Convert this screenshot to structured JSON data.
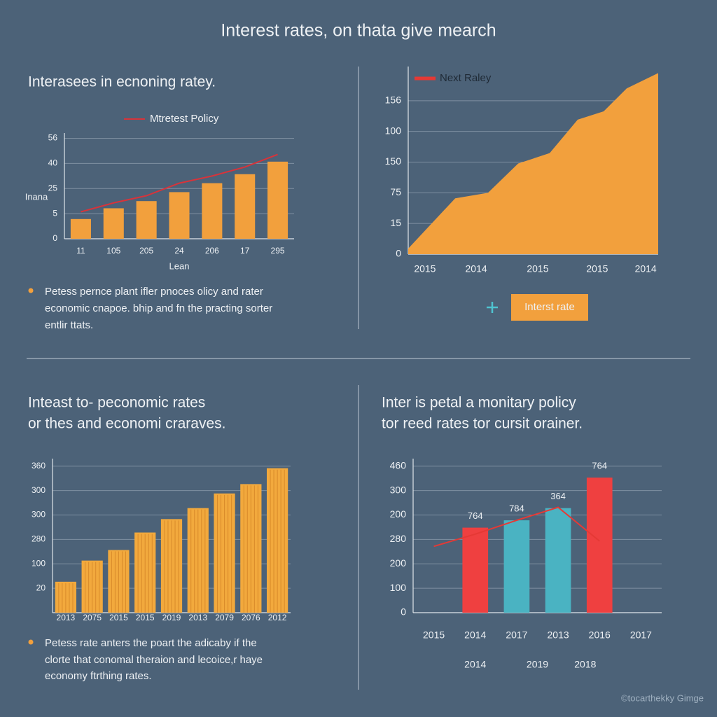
{
  "title": "Interest rates, on thata give mearch",
  "sections": [
    {
      "heading": [
        "Interasees in ecnoning ratey."
      ],
      "note": [
        "Petess pernce plant ifler pnoces olicy and rater",
        "economic cnapoe. bhip and fn the practing sorter",
        "entlir ttats."
      ]
    },
    {
      "heading": [
        "Inteast to- peconomic rates",
        "or thes and economi craraves."
      ],
      "note": [
        "Petess rate anters the poart the adicaby if the",
        "clorte that conomal theraion and lecoice,r haye",
        "economy ftrthing rates."
      ]
    },
    {
      "heading": [
        "Inter is petal a monitary policy",
        "tor reed rates tor cursit orainer."
      ]
    }
  ],
  "watermark": "©tocarthekky Gimge",
  "chart_data": [
    {
      "type": "bar",
      "categories": [
        "11",
        "105",
        "205",
        "24",
        "206",
        "17",
        "295"
      ],
      "series": [
        {
          "name": "Mtretest Policy",
          "type": "line",
          "color": "#d8333a",
          "values": [
            15,
            20,
            24,
            31,
            35,
            40,
            47
          ]
        },
        {
          "type": "bar",
          "color": "#f2a03d",
          "values": [
            11,
            17,
            21,
            26,
            31,
            36,
            43
          ]
        }
      ],
      "ylabel": "Inana",
      "xlabel": "Lean",
      "ylim": [
        0,
        57
      ],
      "yticks": [
        0,
        {
          "value": 14,
          "label": "5"
        },
        {
          "value": 28,
          "label": "25"
        },
        {
          "value": 42,
          "label": "40"
        },
        56
      ],
      "grid": true
    },
    {
      "type": "area",
      "x": [
        0,
        18.8,
        31.9,
        44,
        56.6,
        67.8,
        78.2,
        87.4,
        100
      ],
      "series": [
        {
          "name": "Interst rate",
          "color": "#f2a03d",
          "values": [
            5.5,
            54.6,
            60,
            88.6,
            98.8,
            131.5,
            139.6,
            162,
            177
          ]
        }
      ],
      "legend_line": {
        "name": "Next Raley",
        "color": "#e53935"
      },
      "xlim": [
        0,
        100
      ],
      "xticks": [
        {
          "value": 6.7,
          "label": "2015"
        },
        {
          "value": 27.2,
          "label": "2014"
        },
        {
          "value": 51.8,
          "label": "2015"
        },
        {
          "value": 75.6,
          "label": "2015"
        },
        {
          "value": 95,
          "label": "2014"
        }
      ],
      "ylim": [
        0,
        180
      ],
      "yticks": [
        0,
        {
          "value": 30,
          "label": "15"
        },
        {
          "value": 60,
          "label": "75"
        },
        {
          "value": 90,
          "label": "150"
        },
        {
          "value": 120,
          "label": "100"
        },
        {
          "value": 150,
          "label": "156"
        }
      ],
      "grid": true
    },
    {
      "type": "bar",
      "categories": [
        "2013",
        "2075",
        "2015",
        "2015",
        "2019",
        "2013",
        "2079",
        "2076",
        "2012"
      ],
      "series": [
        {
          "type": "bar",
          "color": "#f2a93d",
          "values": [
            76,
            128,
            154,
            197,
            230,
            257,
            293,
            316,
            355
          ]
        }
      ],
      "ylim": [
        0,
        370
      ],
      "yticks": [
        {
          "value": 60,
          "label": "20"
        },
        {
          "value": 120,
          "label": "100"
        },
        {
          "value": 180,
          "label": "280"
        },
        {
          "value": 240,
          "label": "300"
        },
        {
          "value": 300,
          "label": "300"
        },
        360
      ],
      "grid": true
    },
    {
      "type": "bar",
      "categories": [
        "2015",
        "2014",
        "2017",
        "2013",
        "2016",
        "2017"
      ],
      "sublabels": [
        "2014",
        "2019",
        "2018"
      ],
      "annotations": [
        null,
        "764",
        "784",
        "364",
        "764",
        null
      ],
      "series": [
        {
          "type": "bar",
          "colors": [
            null,
            "#ef4040",
            "#4ab3c2",
            "#4ab3c2",
            "#ef4040",
            null
          ],
          "values": [
            null,
            209,
            227,
            257,
            332,
            null
          ]
        },
        {
          "type": "line",
          "color": "#e53935",
          "values": [
            163,
            193,
            227,
            259,
            176,
            null
          ]
        }
      ],
      "ylim": [
        0,
        370
      ],
      "yticks": [
        0,
        {
          "value": 60,
          "label": "100"
        },
        {
          "value": 120,
          "label": "200"
        },
        {
          "value": 180,
          "label": "280"
        },
        {
          "value": 240,
          "label": "200"
        },
        {
          "value": 300,
          "label": "300"
        },
        {
          "value": 360,
          "label": "460"
        }
      ],
      "grid": true
    }
  ]
}
